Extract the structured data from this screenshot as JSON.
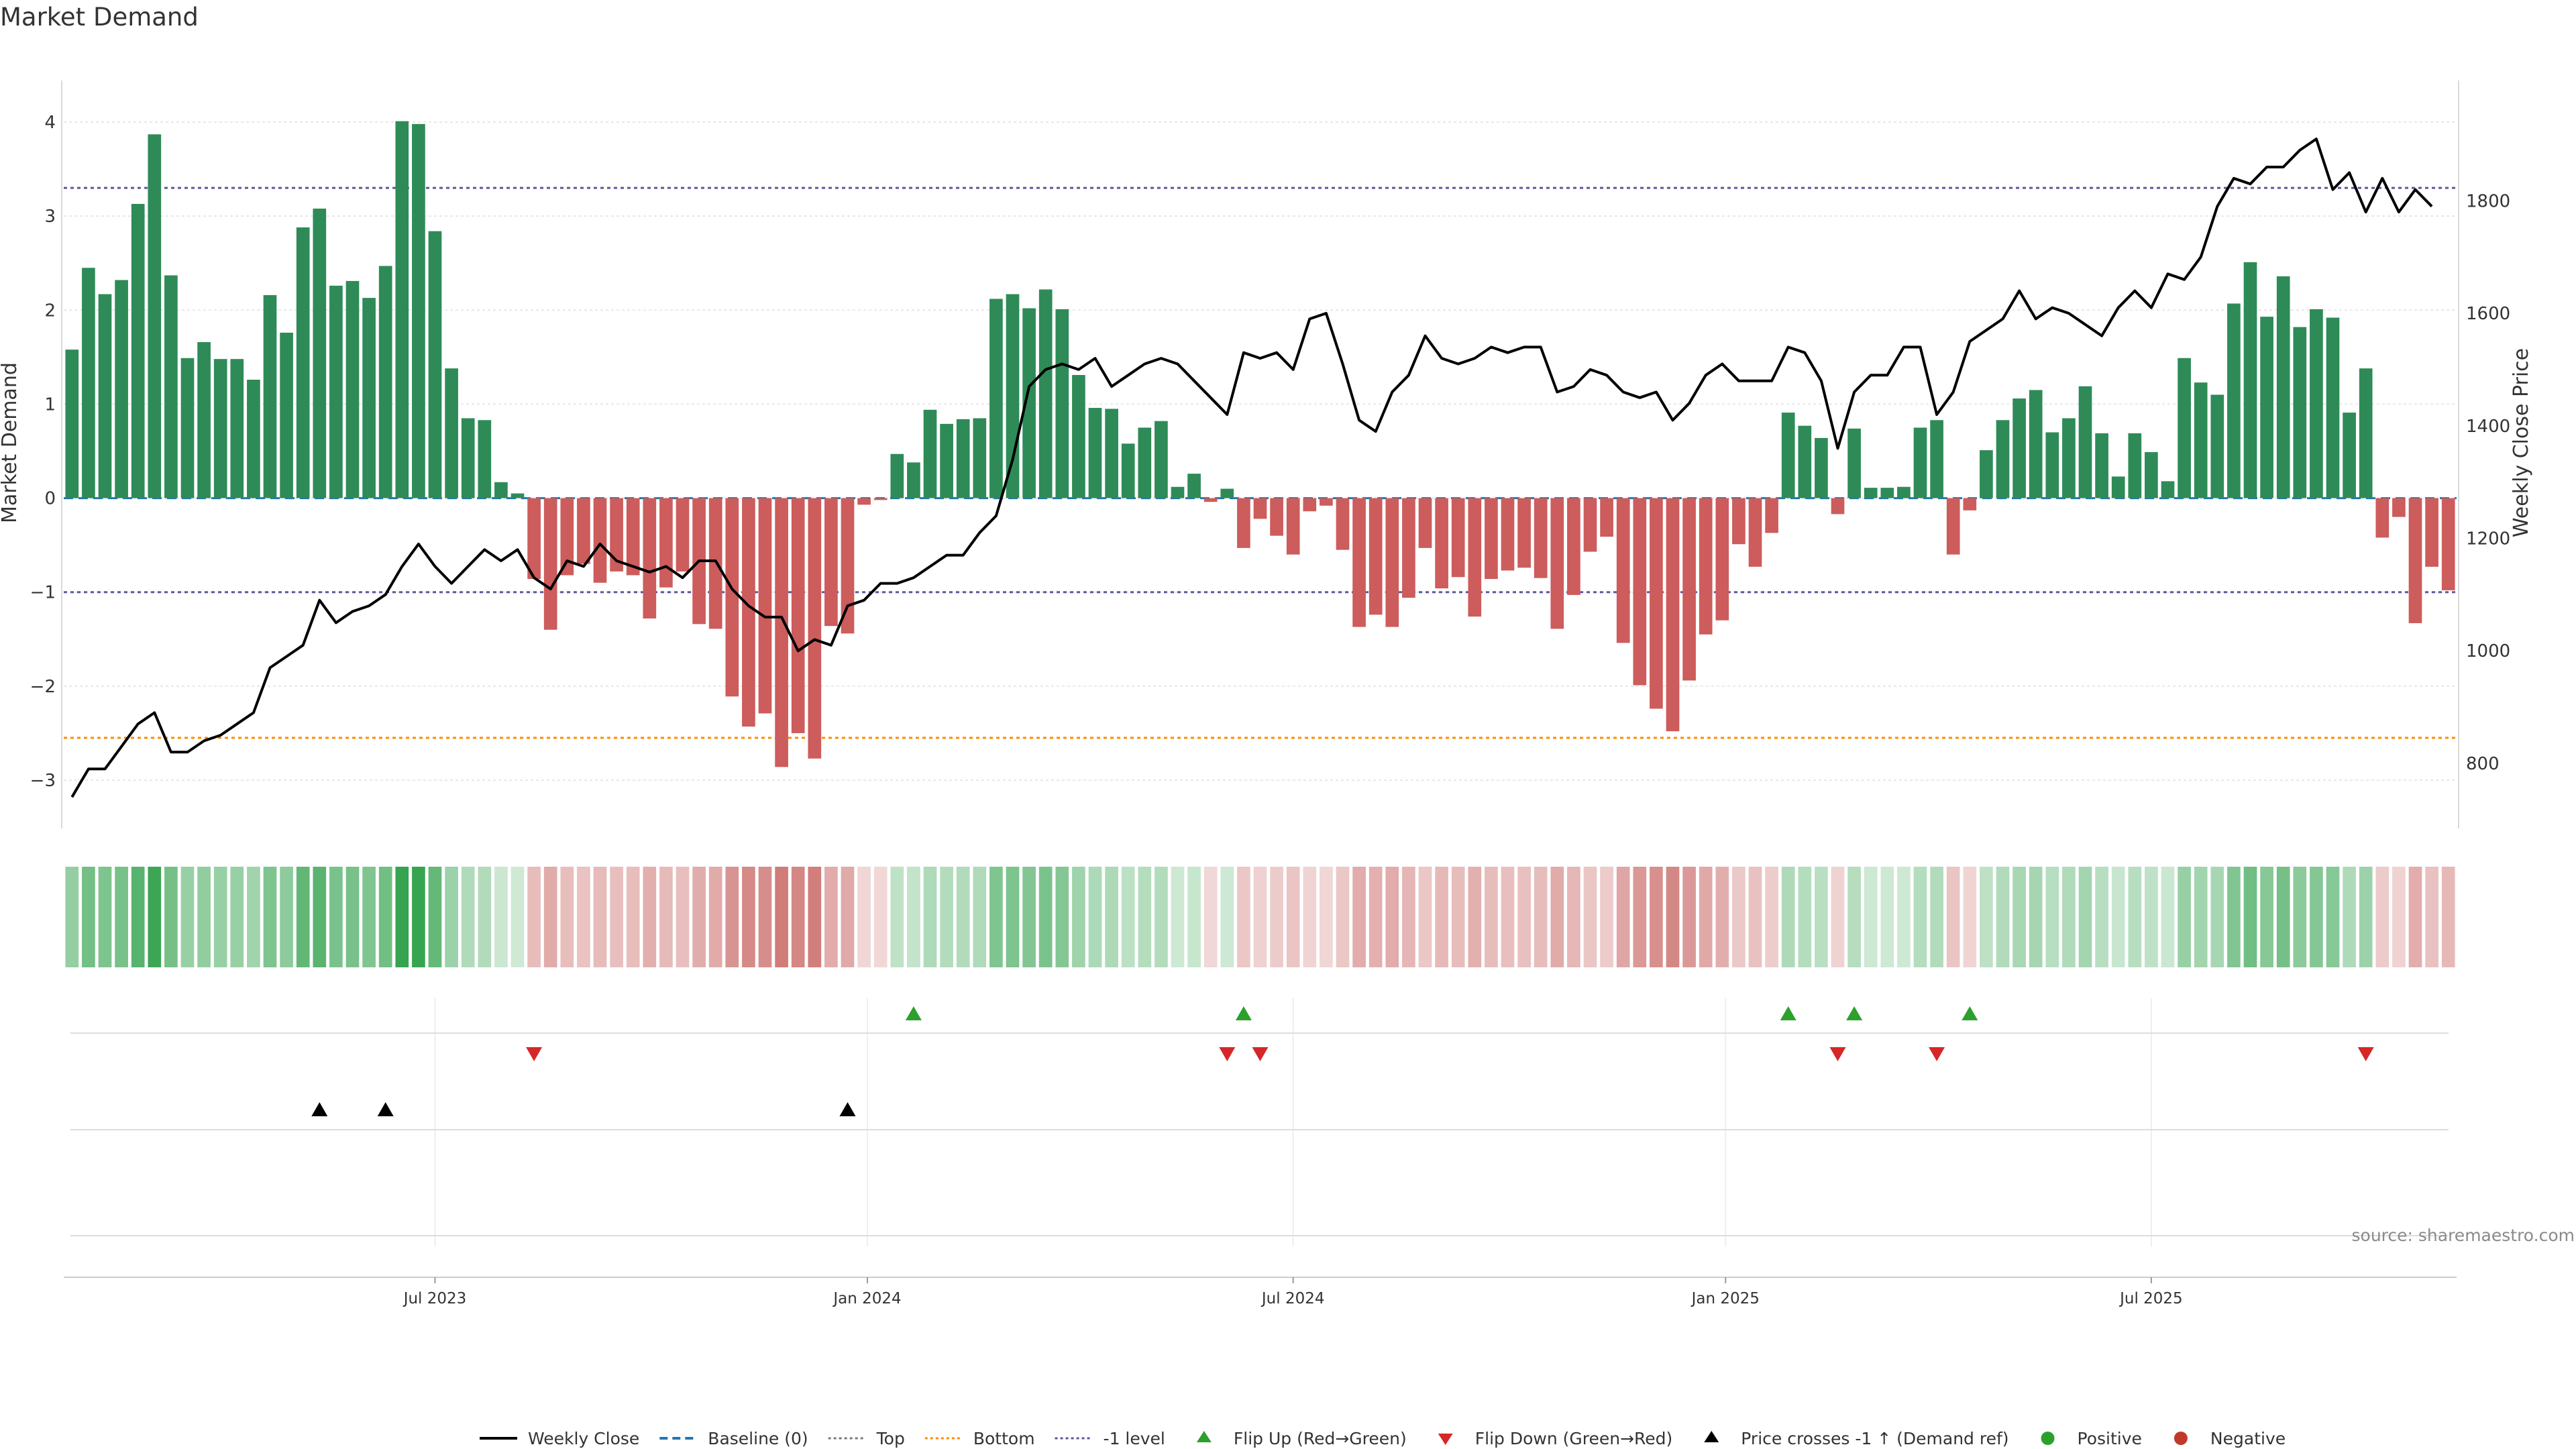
{
  "colors": {
    "positive_bar": "#2e8b57",
    "negative_bar": "#cd5c5c",
    "price_line": "#000000",
    "baseline": "#1f77b4",
    "top_line": "#7a7a7a",
    "bottom_line": "#ff8c00",
    "minus1_line": "#5a5aa0",
    "flip_up": "#2ca02c",
    "flip_down": "#d62728",
    "cross_marker": "#000000",
    "positive_dot": "#2ca02c",
    "negative_dot": "#c0392b"
  },
  "chart_data": {
    "type": "bar",
    "title": "Market Demand",
    "y_left_label": "Market Demand",
    "y_right_label": "Weekly Close Price",
    "y_left_range": [
      -3.3,
      4.3
    ],
    "y_right_range": [
      720,
      1990
    ],
    "y_left_ticks": [
      {
        "value": 4,
        "label": "4"
      },
      {
        "value": 3,
        "label": "3"
      },
      {
        "value": 2,
        "label": "2"
      },
      {
        "value": 1,
        "label": "1"
      },
      {
        "value": 0,
        "label": "0"
      },
      {
        "value": -1,
        "label": "−1"
      },
      {
        "value": -2,
        "label": "−2"
      },
      {
        "value": -3,
        "label": "−3"
      }
    ],
    "y_right_ticks": [
      {
        "value": 1800,
        "label": "1800"
      },
      {
        "value": 1600,
        "label": "1600"
      },
      {
        "value": 1400,
        "label": "1400"
      },
      {
        "value": 1200,
        "label": "1200"
      },
      {
        "value": 1000,
        "label": "1000"
      },
      {
        "value": 800,
        "label": "800"
      }
    ],
    "x_ticks": [
      {
        "week": 22,
        "label": "Jul 2023"
      },
      {
        "week": 48.2,
        "label": "Jan 2024"
      },
      {
        "week": 74,
        "label": "Jul 2024"
      },
      {
        "week": 100.2,
        "label": "Jan 2025"
      },
      {
        "week": 126,
        "label": "Jul 2025"
      }
    ],
    "reference_levels": {
      "top": 3.3,
      "bottom": -2.55,
      "minus1": -1,
      "baseline": 0
    },
    "demand": [
      1.58,
      2.45,
      2.17,
      2.32,
      3.13,
      3.87,
      2.37,
      1.49,
      1.66,
      1.48,
      1.48,
      1.26,
      2.16,
      1.76,
      2.88,
      3.08,
      2.26,
      2.31,
      2.13,
      2.47,
      4.01,
      3.98,
      2.84,
      1.38,
      0.85,
      0.83,
      0.17,
      0.05,
      -0.86,
      -1.4,
      -0.82,
      -0.7,
      -0.9,
      -0.78,
      -0.82,
      -1.28,
      -0.95,
      -0.78,
      -1.34,
      -1.39,
      -2.11,
      -2.43,
      -2.29,
      -2.86,
      -2.5,
      -2.77,
      -1.36,
      -1.44,
      -0.07,
      -0.02,
      0.47,
      0.38,
      0.94,
      0.79,
      0.84,
      0.85,
      2.12,
      2.17,
      2.02,
      2.22,
      2.01,
      1.31,
      0.96,
      0.95,
      0.58,
      0.75,
      0.82,
      0.12,
      0.26,
      -0.04,
      0.1,
      -0.53,
      -0.22,
      -0.4,
      -0.6,
      -0.14,
      -0.08,
      -0.55,
      -1.37,
      -1.24,
      -1.37,
      -1.06,
      -0.53,
      -0.96,
      -0.84,
      -1.26,
      -0.86,
      -0.77,
      -0.74,
      -0.85,
      -1.39,
      -1.03,
      -0.57,
      -0.41,
      -1.54,
      -1.99,
      -2.24,
      -2.48,
      -1.94,
      -1.45,
      -1.3,
      -0.49,
      -0.73,
      -0.37,
      0.91,
      0.77,
      0.64,
      -0.17,
      0.74,
      0.11,
      0.11,
      0.12,
      0.75,
      0.83,
      -0.6,
      -0.13,
      0.51,
      0.83,
      1.06,
      1.15,
      0.7,
      0.85,
      1.19,
      0.69,
      0.23,
      0.69,
      0.49,
      0.18,
      1.49,
      1.23,
      1.1,
      2.07,
      2.51,
      1.93,
      2.36,
      1.82,
      2.01,
      1.92,
      0.91,
      1.38,
      -0.42,
      -0.2,
      -1.33,
      -0.73,
      -0.98
    ],
    "price": [
      740,
      790,
      790,
      830,
      870,
      890,
      820,
      820,
      840,
      850,
      870,
      890,
      970,
      990,
      1010,
      1090,
      1050,
      1070,
      1080,
      1100,
      1150,
      1190,
      1150,
      1120,
      1150,
      1180,
      1160,
      1180,
      1130,
      1110,
      1160,
      1150,
      1190,
      1160,
      1150,
      1140,
      1150,
      1130,
      1160,
      1160,
      1110,
      1080,
      1060,
      1060,
      1000,
      1020,
      1010,
      1080,
      1090,
      1120,
      1120,
      1130,
      1150,
      1170,
      1170,
      1210,
      1240,
      1340,
      1470,
      1500,
      1510,
      1500,
      1520,
      1470,
      1490,
      1510,
      1520,
      1510,
      1480,
      1450,
      1420,
      1530,
      1520,
      1530,
      1500,
      1590,
      1600,
      1510,
      1410,
      1390,
      1460,
      1490,
      1560,
      1520,
      1510,
      1520,
      1540,
      1530,
      1540,
      1540,
      1460,
      1470,
      1500,
      1490,
      1460,
      1450,
      1460,
      1410,
      1440,
      1490,
      1510,
      1480,
      1480,
      1480,
      1540,
      1530,
      1480,
      1360,
      1460,
      1490,
      1490,
      1540,
      1540,
      1420,
      1460,
      1550,
      1570,
      1590,
      1640,
      1590,
      1610,
      1600,
      1580,
      1560,
      1610,
      1640,
      1610,
      1670,
      1660,
      1700,
      1790,
      1840,
      1830,
      1860,
      1860,
      1890,
      1910,
      1820,
      1850,
      1780,
      1840,
      1780,
      1820,
      1790
    ],
    "flip_up_weeks": [
      51,
      71,
      104,
      108,
      115
    ],
    "flip_down_weeks": [
      28,
      70,
      72,
      107,
      113,
      139
    ],
    "price_cross_weeks": [
      15,
      19,
      47
    ],
    "source": "source: sharemaestro.com",
    "legend": [
      {
        "symbol": "line",
        "color": "#000000",
        "label": "Weekly Close"
      },
      {
        "symbol": "dash",
        "color": "#1f77b4",
        "label": "Baseline (0)"
      },
      {
        "symbol": "dot",
        "color": "#7a7a7a",
        "label": "Top"
      },
      {
        "symbol": "dot",
        "color": "#ff8c00",
        "label": "Bottom"
      },
      {
        "symbol": "dot",
        "color": "#5a5aa0",
        "label": "-1 level"
      },
      {
        "symbol": "tri-up",
        "color": "#2ca02c",
        "label": "Flip Up (Red→Green)"
      },
      {
        "symbol": "tri-down",
        "color": "#d62728",
        "label": "Flip Down (Green→Red)"
      },
      {
        "symbol": "tri-up",
        "color": "#000000",
        "label": "Price crosses -1 ↑ (Demand ref)"
      },
      {
        "symbol": "circle",
        "color": "#2ca02c",
        "label": "Positive"
      },
      {
        "symbol": "circle",
        "color": "#c0392b",
        "label": "Negative"
      }
    ]
  }
}
